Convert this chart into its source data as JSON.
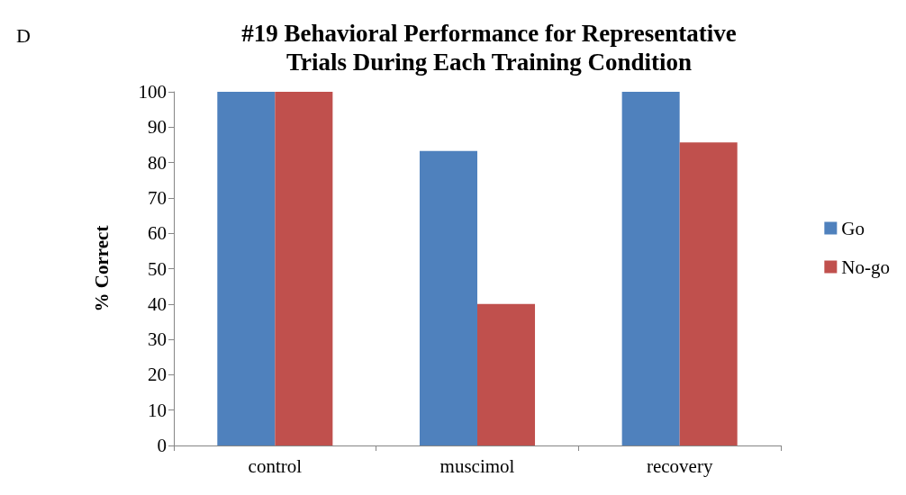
{
  "chart_data": {
    "type": "bar",
    "title": "#19 Behavioral Performance for Representative\nTrials During Each Training Condition",
    "ylabel": "% Correct",
    "annotations": [
      "D"
    ],
    "categories": [
      "control",
      "muscimol",
      "recovery"
    ],
    "series": [
      {
        "name": "Go",
        "color": "#4f81bd",
        "values": [
          100,
          83.3,
          100
        ]
      },
      {
        "name": "No-go",
        "color": "#c0504d",
        "values": [
          100,
          40,
          85.7
        ]
      }
    ],
    "ylim": [
      0,
      100
    ],
    "yticks": [
      0,
      10,
      20,
      30,
      40,
      50,
      60,
      70,
      80,
      90,
      100
    ],
    "grid": false,
    "legend": "right"
  }
}
